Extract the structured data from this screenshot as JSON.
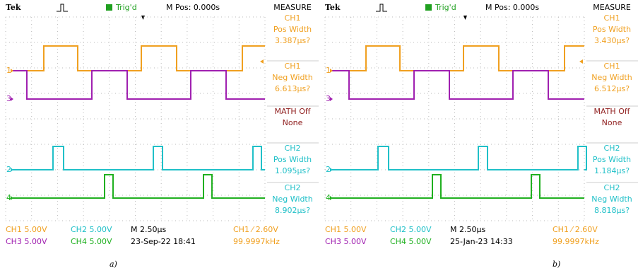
{
  "panels": [
    {
      "header": {
        "brand": "Tek",
        "trigger": "Trig'd",
        "position": "M Pos: 0.000s",
        "menu": "MEASURE"
      },
      "channel_markers": [
        "1",
        "3",
        "2",
        "4"
      ],
      "measurements": [
        [
          "CH1",
          "Pos Width",
          "3.387µs?"
        ],
        [
          "CH1",
          "Neg Width",
          "6.613µs?"
        ],
        [
          "MATH Off",
          "None"
        ],
        [
          "CH2",
          "Pos Width",
          "1.095µs?"
        ],
        [
          "CH2",
          "Neg Width",
          "8.902µs?"
        ]
      ],
      "footer": [
        [
          "CH1 5.00V",
          "CH2 5.00V",
          "M 2.50µs",
          "CH1 ⁄ 2.60V"
        ],
        [
          "CH3 5.00V",
          "CH4 5.00V",
          "23-Sep-22 18:41",
          "99.9997kHz"
        ]
      ],
      "caption": "a)"
    },
    {
      "header": {
        "brand": "Tek",
        "trigger": "Trig'd",
        "position": "M Pos: 0.000s",
        "menu": "MEASURE"
      },
      "channel_markers": [
        "1",
        "3",
        "2",
        "4"
      ],
      "measurements": [
        [
          "CH1",
          "Pos Width",
          "3.430µs?"
        ],
        [
          "CH1",
          "Neg Width",
          "6.512µs?"
        ],
        [
          "MATH Off",
          "None"
        ],
        [
          "CH2",
          "Pos Width",
          "1.184µs?"
        ],
        [
          "CH2",
          "Neg Width",
          "8.818µs?"
        ]
      ],
      "footer": [
        [
          "CH1 5.00V",
          "CH2 5.00V",
          "M 2.50µs",
          "CH1 ⁄ 2.60V"
        ],
        [
          "CH3 5.00V",
          "CH4 5.00V",
          "25-Jan-23 14:33",
          "99.9997kHz"
        ]
      ],
      "caption": "b)"
    }
  ]
}
